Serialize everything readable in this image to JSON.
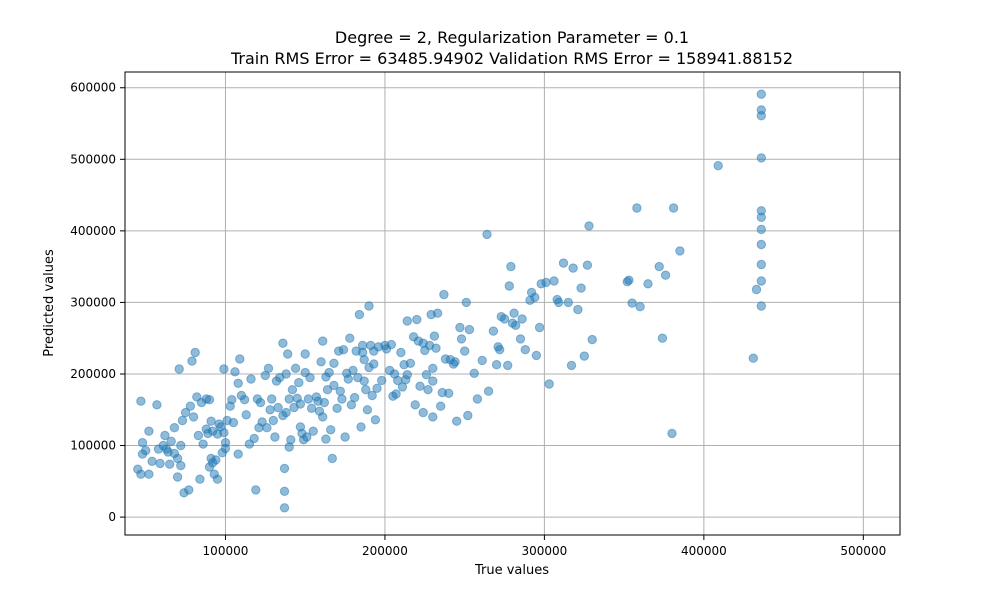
{
  "chart_data": {
    "type": "scatter",
    "title": "Degree = 2, Regularization Parameter = 0.1",
    "subtitle": "Train RMS Error = 63485.94902 Validation RMS Error = 158941.88152",
    "xlabel": "True values",
    "ylabel": "Predicted values",
    "xlim": [
      37000,
      523000
    ],
    "ylim": [
      -25000,
      622000
    ],
    "xticks": [
      100000,
      200000,
      300000,
      400000,
      500000
    ],
    "yticks": [
      0,
      100000,
      200000,
      300000,
      400000,
      500000,
      600000
    ],
    "grid": true,
    "color": "#1f77b4",
    "points": [
      [
        45000,
        67000
      ],
      [
        47000,
        60000
      ],
      [
        47000,
        162000
      ],
      [
        48000,
        88000
      ],
      [
        48000,
        104000
      ],
      [
        50000,
        93000
      ],
      [
        52000,
        60000
      ],
      [
        52000,
        120000
      ],
      [
        54000,
        78000
      ],
      [
        57000,
        157000
      ],
      [
        58000,
        95000
      ],
      [
        59000,
        75000
      ],
      [
        61000,
        100000
      ],
      [
        62000,
        114000
      ],
      [
        63000,
        95000
      ],
      [
        64000,
        91000
      ],
      [
        65000,
        74000
      ],
      [
        66000,
        106000
      ],
      [
        68000,
        89000
      ],
      [
        68000,
        125000
      ],
      [
        70000,
        56000
      ],
      [
        70000,
        82000
      ],
      [
        71000,
        207000
      ],
      [
        72000,
        72000
      ],
      [
        72000,
        100000
      ],
      [
        73000,
        135000
      ],
      [
        74000,
        34000
      ],
      [
        75000,
        146000
      ],
      [
        77000,
        38000
      ],
      [
        78000,
        155000
      ],
      [
        79000,
        218000
      ],
      [
        80000,
        140000
      ],
      [
        81000,
        230000
      ],
      [
        82000,
        168000
      ],
      [
        83000,
        114000
      ],
      [
        84000,
        53000
      ],
      [
        85000,
        160000
      ],
      [
        86000,
        102000
      ],
      [
        88000,
        123000
      ],
      [
        88000,
        165000
      ],
      [
        89000,
        117000
      ],
      [
        90000,
        164000
      ],
      [
        90000,
        70000
      ],
      [
        91000,
        82000
      ],
      [
        91000,
        134000
      ],
      [
        92000,
        120000
      ],
      [
        92000,
        76000
      ],
      [
        93000,
        60000
      ],
      [
        94000,
        80000
      ],
      [
        95000,
        53000
      ],
      [
        95000,
        116000
      ],
      [
        96000,
        130000
      ],
      [
        97000,
        126000
      ],
      [
        98000,
        90000
      ],
      [
        99000,
        118000
      ],
      [
        99000,
        207000
      ],
      [
        100000,
        96000
      ],
      [
        100000,
        104000
      ],
      [
        101000,
        135000
      ],
      [
        103000,
        155000
      ],
      [
        104000,
        164000
      ],
      [
        105000,
        132000
      ],
      [
        106000,
        203000
      ],
      [
        108000,
        187000
      ],
      [
        108000,
        88000
      ],
      [
        109000,
        221000
      ],
      [
        110000,
        170000
      ],
      [
        112000,
        164000
      ],
      [
        113000,
        143000
      ],
      [
        115000,
        102000
      ],
      [
        116000,
        193000
      ],
      [
        118000,
        110000
      ],
      [
        119000,
        38000
      ],
      [
        120000,
        165000
      ],
      [
        121000,
        125000
      ],
      [
        122000,
        160000
      ],
      [
        123000,
        133000
      ],
      [
        125000,
        198000
      ],
      [
        126000,
        125000
      ],
      [
        127000,
        208000
      ],
      [
        128000,
        150000
      ],
      [
        129000,
        165000
      ],
      [
        130000,
        135000
      ],
      [
        131000,
        112000
      ],
      [
        132000,
        190000
      ],
      [
        133000,
        153000
      ],
      [
        134000,
        195000
      ],
      [
        136000,
        243000
      ],
      [
        136000,
        142000
      ],
      [
        137000,
        36000
      ],
      [
        137000,
        13000
      ],
      [
        137000,
        68000
      ],
      [
        138000,
        200000
      ],
      [
        138000,
        146000
      ],
      [
        139000,
        228000
      ],
      [
        140000,
        165000
      ],
      [
        140000,
        98000
      ],
      [
        141000,
        108000
      ],
      [
        142000,
        178000
      ],
      [
        143000,
        153000
      ],
      [
        144000,
        208000
      ],
      [
        145000,
        166000
      ],
      [
        146000,
        188000
      ],
      [
        147000,
        126000
      ],
      [
        147000,
        158000
      ],
      [
        148000,
        117000
      ],
      [
        149000,
        108000
      ],
      [
        150000,
        202000
      ],
      [
        150000,
        228000
      ],
      [
        151000,
        112000
      ],
      [
        152000,
        165000
      ],
      [
        153000,
        195000
      ],
      [
        154000,
        152000
      ],
      [
        155000,
        120000
      ],
      [
        157000,
        168000
      ],
      [
        158000,
        162000
      ],
      [
        159000,
        148000
      ],
      [
        160000,
        217000
      ],
      [
        161000,
        140000
      ],
      [
        161000,
        246000
      ],
      [
        162000,
        160000
      ],
      [
        163000,
        109000
      ],
      [
        163000,
        196000
      ],
      [
        164000,
        178000
      ],
      [
        165000,
        202000
      ],
      [
        166000,
        122000
      ],
      [
        167000,
        82000
      ],
      [
        168000,
        215000
      ],
      [
        168000,
        184000
      ],
      [
        170000,
        152000
      ],
      [
        171000,
        232000
      ],
      [
        172000,
        176000
      ],
      [
        173000,
        165000
      ],
      [
        174000,
        234000
      ],
      [
        175000,
        112000
      ],
      [
        176000,
        201000
      ],
      [
        177000,
        193000
      ],
      [
        178000,
        250000
      ],
      [
        179000,
        157000
      ],
      [
        180000,
        205000
      ],
      [
        181000,
        167000
      ],
      [
        182000,
        232000
      ],
      [
        183000,
        195000
      ],
      [
        184000,
        283000
      ],
      [
        185000,
        126000
      ],
      [
        186000,
        240000
      ],
      [
        186000,
        230000
      ],
      [
        187000,
        190000
      ],
      [
        187000,
        220000
      ],
      [
        188000,
        178000
      ],
      [
        189000,
        150000
      ],
      [
        190000,
        295000
      ],
      [
        190000,
        209000
      ],
      [
        191000,
        240000
      ],
      [
        192000,
        170000
      ],
      [
        193000,
        232000
      ],
      [
        193000,
        214000
      ],
      [
        194000,
        136000
      ],
      [
        195000,
        180000
      ],
      [
        196000,
        238000
      ],
      [
        198000,
        191000
      ],
      [
        200000,
        240000
      ],
      [
        201000,
        235000
      ],
      [
        203000,
        205000
      ],
      [
        204000,
        241000
      ],
      [
        205000,
        169000
      ],
      [
        206000,
        200000
      ],
      [
        207000,
        172000
      ],
      [
        208000,
        191000
      ],
      [
        210000,
        230000
      ],
      [
        211000,
        182000
      ],
      [
        212000,
        213000
      ],
      [
        213000,
        192000
      ],
      [
        214000,
        199000
      ],
      [
        214000,
        274000
      ],
      [
        216000,
        215000
      ],
      [
        218000,
        252000
      ],
      [
        219000,
        157000
      ],
      [
        220000,
        276000
      ],
      [
        221000,
        246000
      ],
      [
        222000,
        183000
      ],
      [
        224000,
        243000
      ],
      [
        224000,
        146000
      ],
      [
        225000,
        233000
      ],
      [
        226000,
        199000
      ],
      [
        227000,
        178000
      ],
      [
        228000,
        240000
      ],
      [
        229000,
        283000
      ],
      [
        230000,
        208000
      ],
      [
        230000,
        190000
      ],
      [
        230000,
        140000
      ],
      [
        231000,
        253000
      ],
      [
        232000,
        236000
      ],
      [
        233000,
        285000
      ],
      [
        235000,
        155000
      ],
      [
        236000,
        174000
      ],
      [
        237000,
        311000
      ],
      [
        238000,
        221000
      ],
      [
        240000,
        173000
      ],
      [
        241000,
        220000
      ],
      [
        243000,
        214000
      ],
      [
        244000,
        217000
      ],
      [
        245000,
        134000
      ],
      [
        247000,
        265000
      ],
      [
        248000,
        249000
      ],
      [
        250000,
        232000
      ],
      [
        251000,
        300000
      ],
      [
        252000,
        142000
      ],
      [
        253000,
        262000
      ],
      [
        256000,
        201000
      ],
      [
        258000,
        165000
      ],
      [
        261000,
        219000
      ],
      [
        264000,
        395000
      ],
      [
        265000,
        176000
      ],
      [
        268000,
        260000
      ],
      [
        270000,
        213000
      ],
      [
        271000,
        238000
      ],
      [
        272000,
        234000
      ],
      [
        273000,
        280000
      ],
      [
        275000,
        277000
      ],
      [
        277000,
        212000
      ],
      [
        278000,
        323000
      ],
      [
        279000,
        350000
      ],
      [
        280000,
        271000
      ],
      [
        281000,
        285000
      ],
      [
        282000,
        268000
      ],
      [
        285000,
        249000
      ],
      [
        286000,
        277000
      ],
      [
        288000,
        234000
      ],
      [
        291000,
        303000
      ],
      [
        292000,
        314000
      ],
      [
        294000,
        307000
      ],
      [
        295000,
        226000
      ],
      [
        297000,
        265000
      ],
      [
        298000,
        326000
      ],
      [
        301000,
        328000
      ],
      [
        303000,
        186000
      ],
      [
        306000,
        330000
      ],
      [
        308000,
        304000
      ],
      [
        309000,
        300000
      ],
      [
        312000,
        355000
      ],
      [
        315000,
        300000
      ],
      [
        317000,
        212000
      ],
      [
        318000,
        348000
      ],
      [
        321000,
        290000
      ],
      [
        323000,
        320000
      ],
      [
        325000,
        225000
      ],
      [
        327000,
        352000
      ],
      [
        328000,
        407000
      ],
      [
        330000,
        248000
      ],
      [
        352000,
        329000
      ],
      [
        353000,
        331000
      ],
      [
        355000,
        299000
      ],
      [
        358000,
        432000
      ],
      [
        360000,
        294000
      ],
      [
        365000,
        326000
      ],
      [
        372000,
        350000
      ],
      [
        374000,
        250000
      ],
      [
        376000,
        338000
      ],
      [
        380000,
        117000
      ],
      [
        381000,
        432000
      ],
      [
        385000,
        372000
      ],
      [
        409000,
        491000
      ],
      [
        431000,
        222000
      ],
      [
        433000,
        318000
      ],
      [
        436000,
        591000
      ],
      [
        436000,
        569000
      ],
      [
        436000,
        561000
      ],
      [
        436000,
        502000
      ],
      [
        436000,
        428000
      ],
      [
        436000,
        419000
      ],
      [
        436000,
        402000
      ],
      [
        436000,
        381000
      ],
      [
        436000,
        353000
      ],
      [
        436000,
        330000
      ],
      [
        436000,
        295000
      ]
    ]
  }
}
